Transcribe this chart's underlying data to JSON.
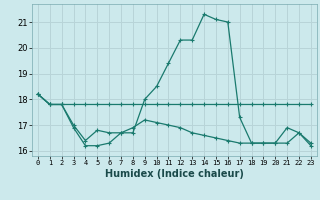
{
  "xlabel": "Humidex (Indice chaleur)",
  "background_color": "#cce9ec",
  "line_color": "#1a7a6e",
  "grid_color": "#b8d4d8",
  "xlim": [
    -0.5,
    23.5
  ],
  "ylim": [
    15.8,
    21.7
  ],
  "yticks": [
    16,
    17,
    18,
    19,
    20,
    21
  ],
  "xticks": [
    0,
    1,
    2,
    3,
    4,
    5,
    6,
    7,
    8,
    9,
    10,
    11,
    12,
    13,
    14,
    15,
    16,
    17,
    18,
    19,
    20,
    21,
    22,
    23
  ],
  "lines": [
    {
      "x": [
        0,
        1,
        2,
        3,
        4,
        5,
        6,
        7,
        8,
        9,
        10,
        11,
        12,
        13,
        14,
        15,
        16,
        17,
        18,
        19,
        20,
        21,
        22,
        23
      ],
      "y": [
        18.2,
        17.8,
        17.8,
        16.9,
        16.2,
        16.2,
        16.3,
        16.7,
        16.7,
        18.0,
        18.5,
        19.4,
        20.3,
        20.3,
        21.3,
        21.1,
        21.0,
        17.3,
        16.3,
        16.3,
        16.3,
        16.9,
        16.7,
        16.2
      ]
    },
    {
      "x": [
        0,
        1,
        2,
        3,
        4,
        5,
        6,
        7,
        8,
        9,
        10,
        11,
        12,
        13,
        14,
        15,
        16,
        17,
        18,
        19,
        20,
        21,
        22,
        23
      ],
      "y": [
        18.2,
        17.8,
        17.8,
        17.8,
        17.8,
        17.8,
        17.8,
        17.8,
        17.8,
        17.8,
        17.8,
        17.8,
        17.8,
        17.8,
        17.8,
        17.8,
        17.8,
        17.8,
        17.8,
        17.8,
        17.8,
        17.8,
        17.8,
        17.8
      ]
    },
    {
      "x": [
        0,
        1,
        2,
        3,
        4,
        5,
        6,
        7,
        8,
        9,
        10,
        11,
        12,
        13,
        14,
        15,
        16,
        17,
        18,
        19,
        20,
        21,
        22,
        23
      ],
      "y": [
        18.2,
        17.8,
        17.8,
        17.0,
        16.4,
        16.8,
        16.7,
        16.7,
        16.9,
        17.2,
        17.1,
        17.0,
        16.9,
        16.7,
        16.6,
        16.5,
        16.4,
        16.3,
        16.3,
        16.3,
        16.3,
        16.3,
        16.7,
        16.3
      ]
    }
  ]
}
